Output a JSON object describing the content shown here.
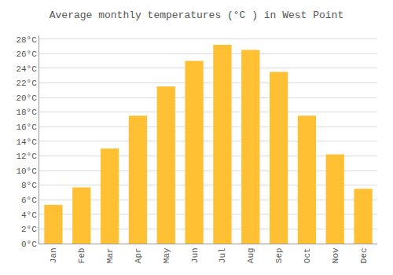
{
  "chart_data": {
    "type": "bar",
    "title": "Average monthly temperatures (°C ) in West Point",
    "categories": [
      "Jan",
      "Feb",
      "Mar",
      "Apr",
      "May",
      "Jun",
      "Jul",
      "Aug",
      "Sep",
      "Oct",
      "Nov",
      "Dec"
    ],
    "values": [
      5.3,
      7.7,
      13.0,
      17.5,
      21.5,
      25.0,
      27.2,
      26.5,
      23.5,
      17.5,
      12.2,
      7.5
    ],
    "color": "#FFC033",
    "ylim": [
      0,
      28.5
    ],
    "yticks": [
      {
        "value": 0,
        "label": "0°C"
      },
      {
        "value": 2,
        "label": "2°C"
      },
      {
        "value": 4,
        "label": "4°C"
      },
      {
        "value": 6,
        "label": "6°C"
      },
      {
        "value": 8,
        "label": "8°C"
      },
      {
        "value": 10,
        "label": "10°C"
      },
      {
        "value": 12,
        "label": "12°C"
      },
      {
        "value": 14,
        "label": "14°C"
      },
      {
        "value": 16,
        "label": "16°C"
      },
      {
        "value": 18,
        "label": "18°C"
      },
      {
        "value": 20,
        "label": "20°C"
      },
      {
        "value": 22,
        "label": "22°C"
      },
      {
        "value": 24,
        "label": "24°C"
      },
      {
        "value": 26,
        "label": "26°C"
      },
      {
        "value": 28,
        "label": "28°C"
      }
    ],
    "grid": true
  }
}
